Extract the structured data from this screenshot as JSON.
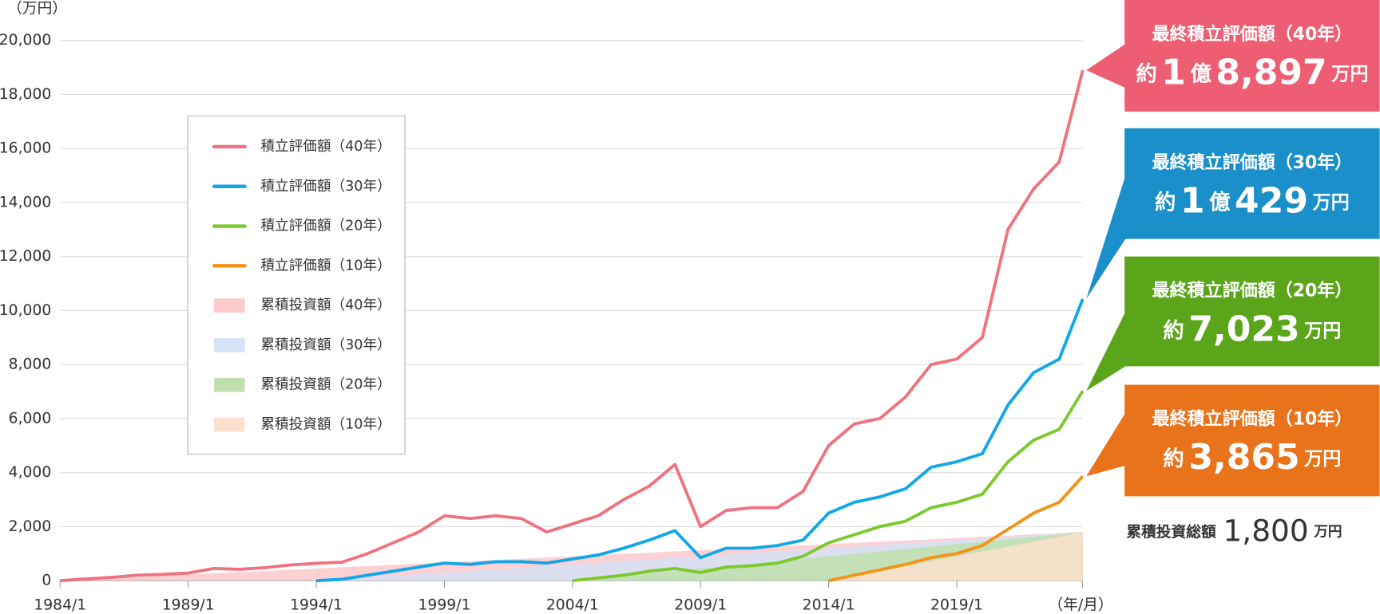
{
  "chart_data": {
    "type": "line",
    "y_label": "（万円）",
    "x_label": "（年/月）",
    "ylim": [
      0,
      20000
    ],
    "yticks": [
      0,
      {
        "value": 2000,
        "label": "2,000"
      },
      {
        "value": 4000,
        "label": "4,000"
      },
      {
        "value": 6000,
        "label": "6,000"
      },
      {
        "value": 8000,
        "label": "8,000"
      },
      {
        "value": 10000,
        "label": "10,000"
      },
      {
        "value": 12000,
        "label": "12,000"
      },
      {
        "value": 14000,
        "label": "14,000"
      },
      {
        "value": 16000,
        "label": "16,000"
      },
      {
        "value": 18000,
        "label": "18,000"
      },
      {
        "value": 20000,
        "label": "20,000"
      }
    ],
    "xlim": [
      1984,
      2024
    ],
    "xticks": [
      {
        "value": 1984,
        "label": "1984/1"
      },
      {
        "value": 1989,
        "label": "1989/1"
      },
      {
        "value": 1994,
        "label": "1994/1"
      },
      {
        "value": 1999,
        "label": "1999/1"
      },
      {
        "value": 2004,
        "label": "2004/1"
      },
      {
        "value": 2009,
        "label": "2009/1"
      },
      {
        "value": 2014,
        "label": "2014/1"
      },
      {
        "value": 2019,
        "label": "2019/1"
      }
    ],
    "grid": true,
    "x": [
      1984,
      1985,
      1986,
      1987,
      1988,
      1989,
      1990,
      1991,
      1992,
      1993,
      1994,
      1995,
      1996,
      1997,
      1998,
      1999,
      2000,
      2001,
      2002,
      2003,
      2004,
      2005,
      2006,
      2007,
      2008,
      2009,
      2010,
      2011,
      2012,
      2013,
      2014,
      2015,
      2016,
      2017,
      2018,
      2019,
      2020,
      2021,
      2022,
      2023,
      2023.92
    ],
    "series": [
      {
        "name": "積立評価額（40年）",
        "type": "line",
        "color": "#f0727f",
        "values": [
          0,
          60,
          120,
          200,
          230,
          280,
          450,
          420,
          480,
          580,
          640,
          680,
          1000,
          1400,
          1800,
          2400,
          2300,
          2400,
          2300,
          1800,
          2100,
          2400,
          3000,
          3500,
          4300,
          2000,
          2600,
          2700,
          2700,
          3300,
          5000,
          5800,
          6000,
          6800,
          8000,
          8200,
          9000,
          13000,
          14500,
          15500,
          18897
        ]
      },
      {
        "name": "積立評価額（30年）",
        "type": "line",
        "color": "#12a7e8",
        "values": [
          null,
          null,
          null,
          null,
          null,
          null,
          null,
          null,
          null,
          null,
          0,
          50,
          200,
          350,
          500,
          650,
          600,
          700,
          700,
          650,
          800,
          950,
          1200,
          1500,
          1850,
          850,
          1200,
          1200,
          1300,
          1500,
          2500,
          2900,
          3100,
          3400,
          4200,
          4400,
          4700,
          6500,
          7700,
          8200,
          10429
        ]
      },
      {
        "name": "積立評価額（20年）",
        "type": "line",
        "color": "#7cc92e",
        "values": [
          null,
          null,
          null,
          null,
          null,
          null,
          null,
          null,
          null,
          null,
          null,
          null,
          null,
          null,
          null,
          null,
          null,
          null,
          null,
          null,
          0,
          100,
          200,
          350,
          450,
          300,
          500,
          550,
          650,
          900,
          1400,
          1700,
          2000,
          2200,
          2700,
          2900,
          3200,
          4400,
          5200,
          5600,
          7023
        ]
      },
      {
        "name": "積立評価額（10年）",
        "type": "line",
        "color": "#f39317",
        "values": [
          null,
          null,
          null,
          null,
          null,
          null,
          null,
          null,
          null,
          null,
          null,
          null,
          null,
          null,
          null,
          null,
          null,
          null,
          null,
          null,
          null,
          null,
          null,
          null,
          null,
          null,
          null,
          null,
          null,
          null,
          0,
          200,
          400,
          600,
          850,
          1000,
          1300,
          1900,
          2500,
          2900,
          3865
        ]
      },
      {
        "name": "累積投資額（40年）",
        "type": "area",
        "color": "#fcc9cc",
        "values": [
          0,
          45,
          90,
          135,
          180,
          225,
          270,
          315,
          360,
          405,
          450,
          495,
          540,
          585,
          630,
          675,
          720,
          765,
          810,
          855,
          900,
          945,
          990,
          1035,
          1080,
          1125,
          1170,
          1215,
          1260,
          1305,
          1350,
          1395,
          1440,
          1485,
          1530,
          1575,
          1620,
          1665,
          1710,
          1755,
          1800
        ]
      },
      {
        "name": "累積投資額（30年）",
        "type": "area",
        "color": "#d6e2f5",
        "values": [
          null,
          null,
          null,
          null,
          null,
          null,
          null,
          null,
          null,
          null,
          0,
          60,
          120,
          180,
          240,
          300,
          360,
          420,
          480,
          540,
          600,
          660,
          720,
          780,
          840,
          900,
          960,
          1020,
          1080,
          1140,
          1200,
          1260,
          1320,
          1380,
          1440,
          1500,
          1560,
          1620,
          1680,
          1740,
          1800
        ]
      },
      {
        "name": "累積投資額（20年）",
        "type": "area",
        "color": "#bfe0ad",
        "values": [
          null,
          null,
          null,
          null,
          null,
          null,
          null,
          null,
          null,
          null,
          null,
          null,
          null,
          null,
          null,
          null,
          null,
          null,
          null,
          null,
          0,
          90,
          180,
          270,
          360,
          450,
          540,
          630,
          720,
          810,
          900,
          990,
          1080,
          1170,
          1260,
          1350,
          1440,
          1530,
          1620,
          1710,
          1800
        ]
      },
      {
        "name": "累積投資額（10年）",
        "type": "area",
        "color": "#fde0cc",
        "values": [
          null,
          null,
          null,
          null,
          null,
          null,
          null,
          null,
          null,
          null,
          null,
          null,
          null,
          null,
          null,
          null,
          null,
          null,
          null,
          null,
          null,
          null,
          null,
          null,
          null,
          null,
          null,
          null,
          null,
          null,
          0,
          180,
          360,
          540,
          720,
          900,
          1080,
          1260,
          1440,
          1620,
          1800
        ]
      }
    ],
    "annotations": [
      {
        "title": "最終積立評価額（40年）",
        "amount": [
          "約",
          "1",
          "億",
          "8,897",
          "万円"
        ],
        "color": "#ee5e72"
      },
      {
        "title": "最終積立評価額（30年）",
        "amount": [
          "約",
          "1",
          "億",
          "429",
          "万円"
        ],
        "color": "#1a8fc9"
      },
      {
        "title": "最終積立評価額（20年）",
        "amount": [
          "約",
          "7,023",
          "万円"
        ],
        "color": "#5aa51a"
      },
      {
        "title": "最終積立評価額（10年）",
        "amount": [
          "約",
          "3,865",
          "万円"
        ],
        "color": "#e8731a"
      }
    ],
    "total": {
      "label": "累積投資総額",
      "amount": "1,800",
      "unit": "万円"
    }
  }
}
